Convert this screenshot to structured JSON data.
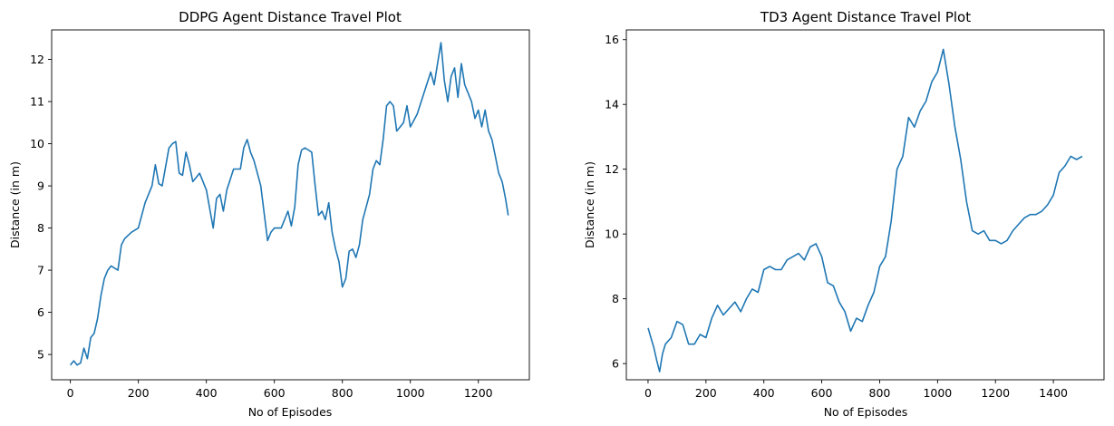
{
  "chart_data": [
    {
      "type": "line",
      "title": "DDPG Agent Distance Travel Plot",
      "xlabel": "No of Episodes",
      "ylabel": "Distance (in m)",
      "xlim": [
        -55,
        1350
      ],
      "ylim": [
        4.4,
        12.7
      ],
      "xticks": [
        0,
        200,
        400,
        600,
        800,
        1000,
        1200
      ],
      "yticks": [
        5,
        6,
        7,
        8,
        9,
        10,
        11,
        12
      ],
      "grid": false,
      "color": "#1f77b4",
      "series": [
        {
          "x": [
            0,
            10,
            20,
            30,
            40,
            50,
            60,
            70,
            80,
            90,
            100,
            110,
            120,
            140,
            150,
            160,
            180,
            200,
            220,
            240,
            250,
            260,
            270,
            290,
            300,
            310,
            320,
            330,
            340,
            350,
            360,
            380,
            400,
            420,
            430,
            440,
            450,
            460,
            480,
            500,
            510,
            520,
            530,
            540,
            560,
            580,
            590,
            600,
            620,
            640,
            650,
            660,
            670,
            680,
            690,
            700,
            710,
            720,
            730,
            740,
            750,
            760,
            770,
            780,
            790,
            800,
            810,
            820,
            830,
            840,
            850,
            860,
            870,
            880,
            890,
            900,
            910,
            920,
            930,
            940,
            950,
            960,
            970,
            980,
            990,
            1000,
            1020,
            1040,
            1060,
            1070,
            1080,
            1090,
            1100,
            1110,
            1120,
            1130,
            1140,
            1150,
            1160,
            1170,
            1180,
            1190,
            1200,
            1210,
            1220,
            1230,
            1240,
            1250,
            1260,
            1270,
            1280,
            1288
          ],
          "y": [
            4.75,
            4.85,
            4.75,
            4.8,
            5.15,
            4.9,
            5.4,
            5.5,
            5.85,
            6.4,
            6.8,
            7.0,
            7.1,
            7.0,
            7.6,
            7.75,
            7.9,
            8.0,
            8.6,
            9.0,
            9.5,
            9.05,
            9.0,
            9.9,
            10.0,
            10.05,
            9.3,
            9.25,
            9.8,
            9.5,
            9.1,
            9.3,
            8.9,
            8.0,
            8.7,
            8.8,
            8.4,
            8.9,
            9.4,
            9.4,
            9.9,
            10.1,
            9.8,
            9.6,
            9.0,
            7.7,
            7.9,
            8.0,
            8.0,
            8.4,
            8.05,
            8.5,
            9.5,
            9.85,
            9.9,
            9.85,
            9.8,
            9.0,
            8.3,
            8.4,
            8.2,
            8.6,
            7.9,
            7.5,
            7.2,
            6.6,
            6.8,
            7.45,
            7.5,
            7.3,
            7.6,
            8.2,
            8.5,
            8.8,
            9.4,
            9.6,
            9.5,
            10.1,
            10.9,
            11.0,
            10.9,
            10.3,
            10.4,
            10.5,
            10.9,
            10.4,
            10.7,
            11.2,
            11.7,
            11.4,
            11.9,
            12.4,
            11.5,
            11.0,
            11.6,
            11.8,
            11.1,
            11.9,
            11.4,
            11.2,
            11.0,
            10.6,
            10.8,
            10.4,
            10.8,
            10.3,
            10.1,
            9.7,
            9.3,
            9.1,
            8.7,
            8.3
          ]
        }
      ]
    },
    {
      "type": "line",
      "title": "TD3 Agent Distance Travel Plot",
      "xlabel": "No of Episodes",
      "ylabel": "Distance (in m)",
      "xlim": [
        -75,
        1575
      ],
      "ylim": [
        5.5,
        16.3
      ],
      "xticks": [
        0,
        200,
        400,
        600,
        800,
        1000,
        1200,
        1400
      ],
      "yticks": [
        6,
        8,
        10,
        12,
        14,
        16
      ],
      "grid": false,
      "color": "#1f77b4",
      "series": [
        {
          "x": [
            0,
            10,
            20,
            30,
            40,
            50,
            60,
            80,
            100,
            120,
            140,
            160,
            180,
            200,
            220,
            240,
            260,
            280,
            300,
            320,
            340,
            360,
            380,
            400,
            420,
            440,
            460,
            480,
            500,
            520,
            540,
            560,
            580,
            600,
            620,
            640,
            660,
            680,
            700,
            720,
            740,
            760,
            780,
            800,
            820,
            840,
            860,
            880,
            900,
            920,
            940,
            960,
            980,
            1000,
            1020,
            1040,
            1060,
            1080,
            1100,
            1120,
            1140,
            1160,
            1180,
            1200,
            1220,
            1240,
            1260,
            1280,
            1300,
            1320,
            1340,
            1360,
            1380,
            1400,
            1420,
            1440,
            1460,
            1480,
            1500
          ],
          "y": [
            7.1,
            6.8,
            6.5,
            6.1,
            5.75,
            6.3,
            6.6,
            6.8,
            7.3,
            7.2,
            6.6,
            6.6,
            6.9,
            6.8,
            7.4,
            7.8,
            7.5,
            7.7,
            7.9,
            7.6,
            8.0,
            8.3,
            8.2,
            8.9,
            9.0,
            8.9,
            8.9,
            9.2,
            9.3,
            9.4,
            9.2,
            9.6,
            9.7,
            9.3,
            8.5,
            8.4,
            7.9,
            7.6,
            7.0,
            7.4,
            7.3,
            7.8,
            8.2,
            9.0,
            9.3,
            10.4,
            12.0,
            12.4,
            13.6,
            13.3,
            13.8,
            14.1,
            14.7,
            15.0,
            15.7,
            14.6,
            13.3,
            12.3,
            11.0,
            10.1,
            10.0,
            10.1,
            9.8,
            9.8,
            9.7,
            9.8,
            10.1,
            10.3,
            10.5,
            10.6,
            10.6,
            10.7,
            10.9,
            11.2,
            11.9,
            12.1,
            12.4,
            12.3,
            12.4
          ]
        }
      ]
    }
  ]
}
